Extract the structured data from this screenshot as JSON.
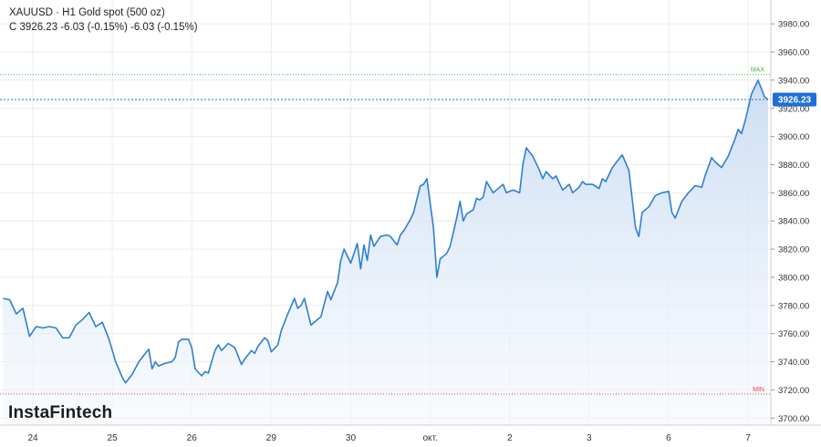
{
  "header": {
    "symbol": "XAUUSD",
    "title": "H1 Gold spot (500 oz)",
    "close_label": "C",
    "close_value": "3926.23",
    "change": "-6.03 (-0.15%)",
    "change2": "-6.03 (-0.15%)"
  },
  "logo": "InstaFintech",
  "colors": {
    "line": "#2f7fd3",
    "area_top": "#c9dcf3",
    "area_bottom": "#f4f8fd",
    "max_line": "#39b54a",
    "min_line": "#e05050",
    "price_tag": "#1e6fd9"
  },
  "chart_data": {
    "type": "area",
    "title": "",
    "ylim": [
      3695,
      3995
    ],
    "y_ticks": [
      "3700.00",
      "3720.00",
      "3740.00",
      "3760.00",
      "3780.00",
      "3800.00",
      "3820.00",
      "3840.00",
      "3860.00",
      "3880.00",
      "3900.00",
      "3920.00",
      "3940.00",
      "3960.00",
      "3980.00"
    ],
    "x_ticks": [
      {
        "label": "24",
        "t": 0
      },
      {
        "label": "25",
        "t": 24
      },
      {
        "label": "26",
        "t": 48
      },
      {
        "label": "29",
        "t": 72
      },
      {
        "label": "30",
        "t": 96
      },
      {
        "label": "окт.",
        "t": 120
      },
      {
        "label": "2",
        "t": 144
      },
      {
        "label": "3",
        "t": 168
      },
      {
        "label": "6",
        "t": 192
      },
      {
        "label": "7",
        "t": 216
      }
    ],
    "max_label": "MAX",
    "max_value": 3944,
    "min_label": "MIN",
    "min_value": 3717,
    "last_price": 3926.23,
    "last_price_label": "3926.23",
    "grid": true,
    "series": [
      {
        "points": [
          [
            -9,
            3785
          ],
          [
            -7,
            3784
          ],
          [
            -5,
            3774
          ],
          [
            -3,
            3778
          ],
          [
            -1,
            3758
          ],
          [
            1,
            3765
          ],
          [
            3,
            3764
          ],
          [
            5,
            3765
          ],
          [
            7,
            3764
          ],
          [
            9,
            3757
          ],
          [
            11,
            3757
          ],
          [
            13,
            3766
          ],
          [
            15,
            3770
          ],
          [
            17,
            3775
          ],
          [
            19,
            3765
          ],
          [
            21,
            3768
          ],
          [
            23,
            3756
          ],
          [
            25,
            3740
          ],
          [
            27,
            3729
          ],
          [
            28,
            3725
          ],
          [
            30,
            3731
          ],
          [
            32,
            3740
          ],
          [
            34,
            3746
          ],
          [
            35,
            3749
          ],
          [
            36,
            3735
          ],
          [
            37,
            3740
          ],
          [
            38,
            3737
          ],
          [
            40,
            3739
          ],
          [
            42,
            3740
          ],
          [
            43,
            3743
          ],
          [
            44,
            3754
          ],
          [
            45,
            3756
          ],
          [
            47,
            3756
          ],
          [
            48,
            3750
          ],
          [
            49,
            3735
          ],
          [
            51,
            3730
          ],
          [
            52,
            3733
          ],
          [
            53,
            3732
          ],
          [
            55,
            3748
          ],
          [
            56,
            3752
          ],
          [
            57,
            3748
          ],
          [
            59,
            3753
          ],
          [
            61,
            3750
          ],
          [
            63,
            3738
          ],
          [
            64,
            3742
          ],
          [
            66,
            3748
          ],
          [
            67,
            3746
          ],
          [
            68,
            3751
          ],
          [
            70,
            3757
          ],
          [
            71,
            3755
          ],
          [
            72,
            3747
          ],
          [
            74,
            3752
          ],
          [
            75,
            3762
          ],
          [
            77,
            3774
          ],
          [
            79,
            3785
          ],
          [
            80,
            3778
          ],
          [
            81,
            3780
          ],
          [
            82,
            3785
          ],
          [
            84,
            3766
          ],
          [
            85,
            3768
          ],
          [
            87,
            3772
          ],
          [
            89,
            3790
          ],
          [
            90,
            3784
          ],
          [
            92,
            3796
          ],
          [
            93,
            3812
          ],
          [
            94,
            3820
          ],
          [
            96,
            3810
          ],
          [
            97,
            3817
          ],
          [
            98,
            3824
          ],
          [
            99,
            3806
          ],
          [
            100,
            3823
          ],
          [
            101,
            3812
          ],
          [
            102,
            3830
          ],
          [
            103,
            3822
          ],
          [
            105,
            3829
          ],
          [
            107,
            3830
          ],
          [
            108,
            3829
          ],
          [
            110,
            3823
          ],
          [
            111,
            3830
          ],
          [
            112,
            3833
          ],
          [
            114,
            3841
          ],
          [
            115,
            3846
          ],
          [
            117,
            3865
          ],
          [
            118,
            3866
          ],
          [
            119,
            3870
          ],
          [
            121,
            3835
          ],
          [
            122,
            3800
          ],
          [
            123,
            3813
          ],
          [
            125,
            3817
          ],
          [
            126,
            3822
          ],
          [
            128,
            3842
          ],
          [
            129,
            3854
          ],
          [
            130,
            3840
          ],
          [
            131,
            3845
          ],
          [
            133,
            3848
          ],
          [
            134,
            3856
          ],
          [
            135,
            3855
          ],
          [
            136,
            3857
          ],
          [
            137,
            3868
          ],
          [
            139,
            3860
          ],
          [
            141,
            3864
          ],
          [
            142,
            3866
          ],
          [
            143,
            3860
          ],
          [
            145,
            3862
          ],
          [
            147,
            3860
          ],
          [
            148,
            3880
          ],
          [
            149,
            3892
          ],
          [
            151,
            3886
          ],
          [
            153,
            3876
          ],
          [
            154,
            3870
          ],
          [
            155,
            3875
          ],
          [
            157,
            3870
          ],
          [
            158,
            3872
          ],
          [
            160,
            3862
          ],
          [
            162,
            3866
          ],
          [
            163,
            3860
          ],
          [
            165,
            3864
          ],
          [
            166,
            3868
          ],
          [
            167,
            3866
          ],
          [
            169,
            3866
          ],
          [
            171,
            3863
          ],
          [
            172,
            3870
          ],
          [
            173,
            3868
          ],
          [
            175,
            3878
          ],
          [
            177,
            3884
          ],
          [
            178,
            3887
          ],
          [
            180,
            3876
          ],
          [
            182,
            3835
          ],
          [
            183,
            3829
          ],
          [
            184,
            3846
          ],
          [
            186,
            3850
          ],
          [
            188,
            3858
          ],
          [
            190,
            3860
          ],
          [
            192,
            3861
          ],
          [
            193,
            3846
          ],
          [
            194,
            3842
          ],
          [
            196,
            3854
          ],
          [
            198,
            3860
          ],
          [
            200,
            3865
          ],
          [
            202,
            3864
          ],
          [
            203,
            3872
          ],
          [
            205,
            3885
          ],
          [
            206,
            3882
          ],
          [
            208,
            3878
          ],
          [
            209,
            3882
          ],
          [
            210,
            3886
          ],
          [
            212,
            3898
          ],
          [
            213,
            3905
          ],
          [
            214,
            3902
          ],
          [
            215,
            3910
          ],
          [
            216,
            3920
          ],
          [
            217,
            3930
          ],
          [
            219,
            3940
          ],
          [
            221,
            3928
          ],
          [
            222,
            3926.23
          ]
        ]
      }
    ]
  }
}
